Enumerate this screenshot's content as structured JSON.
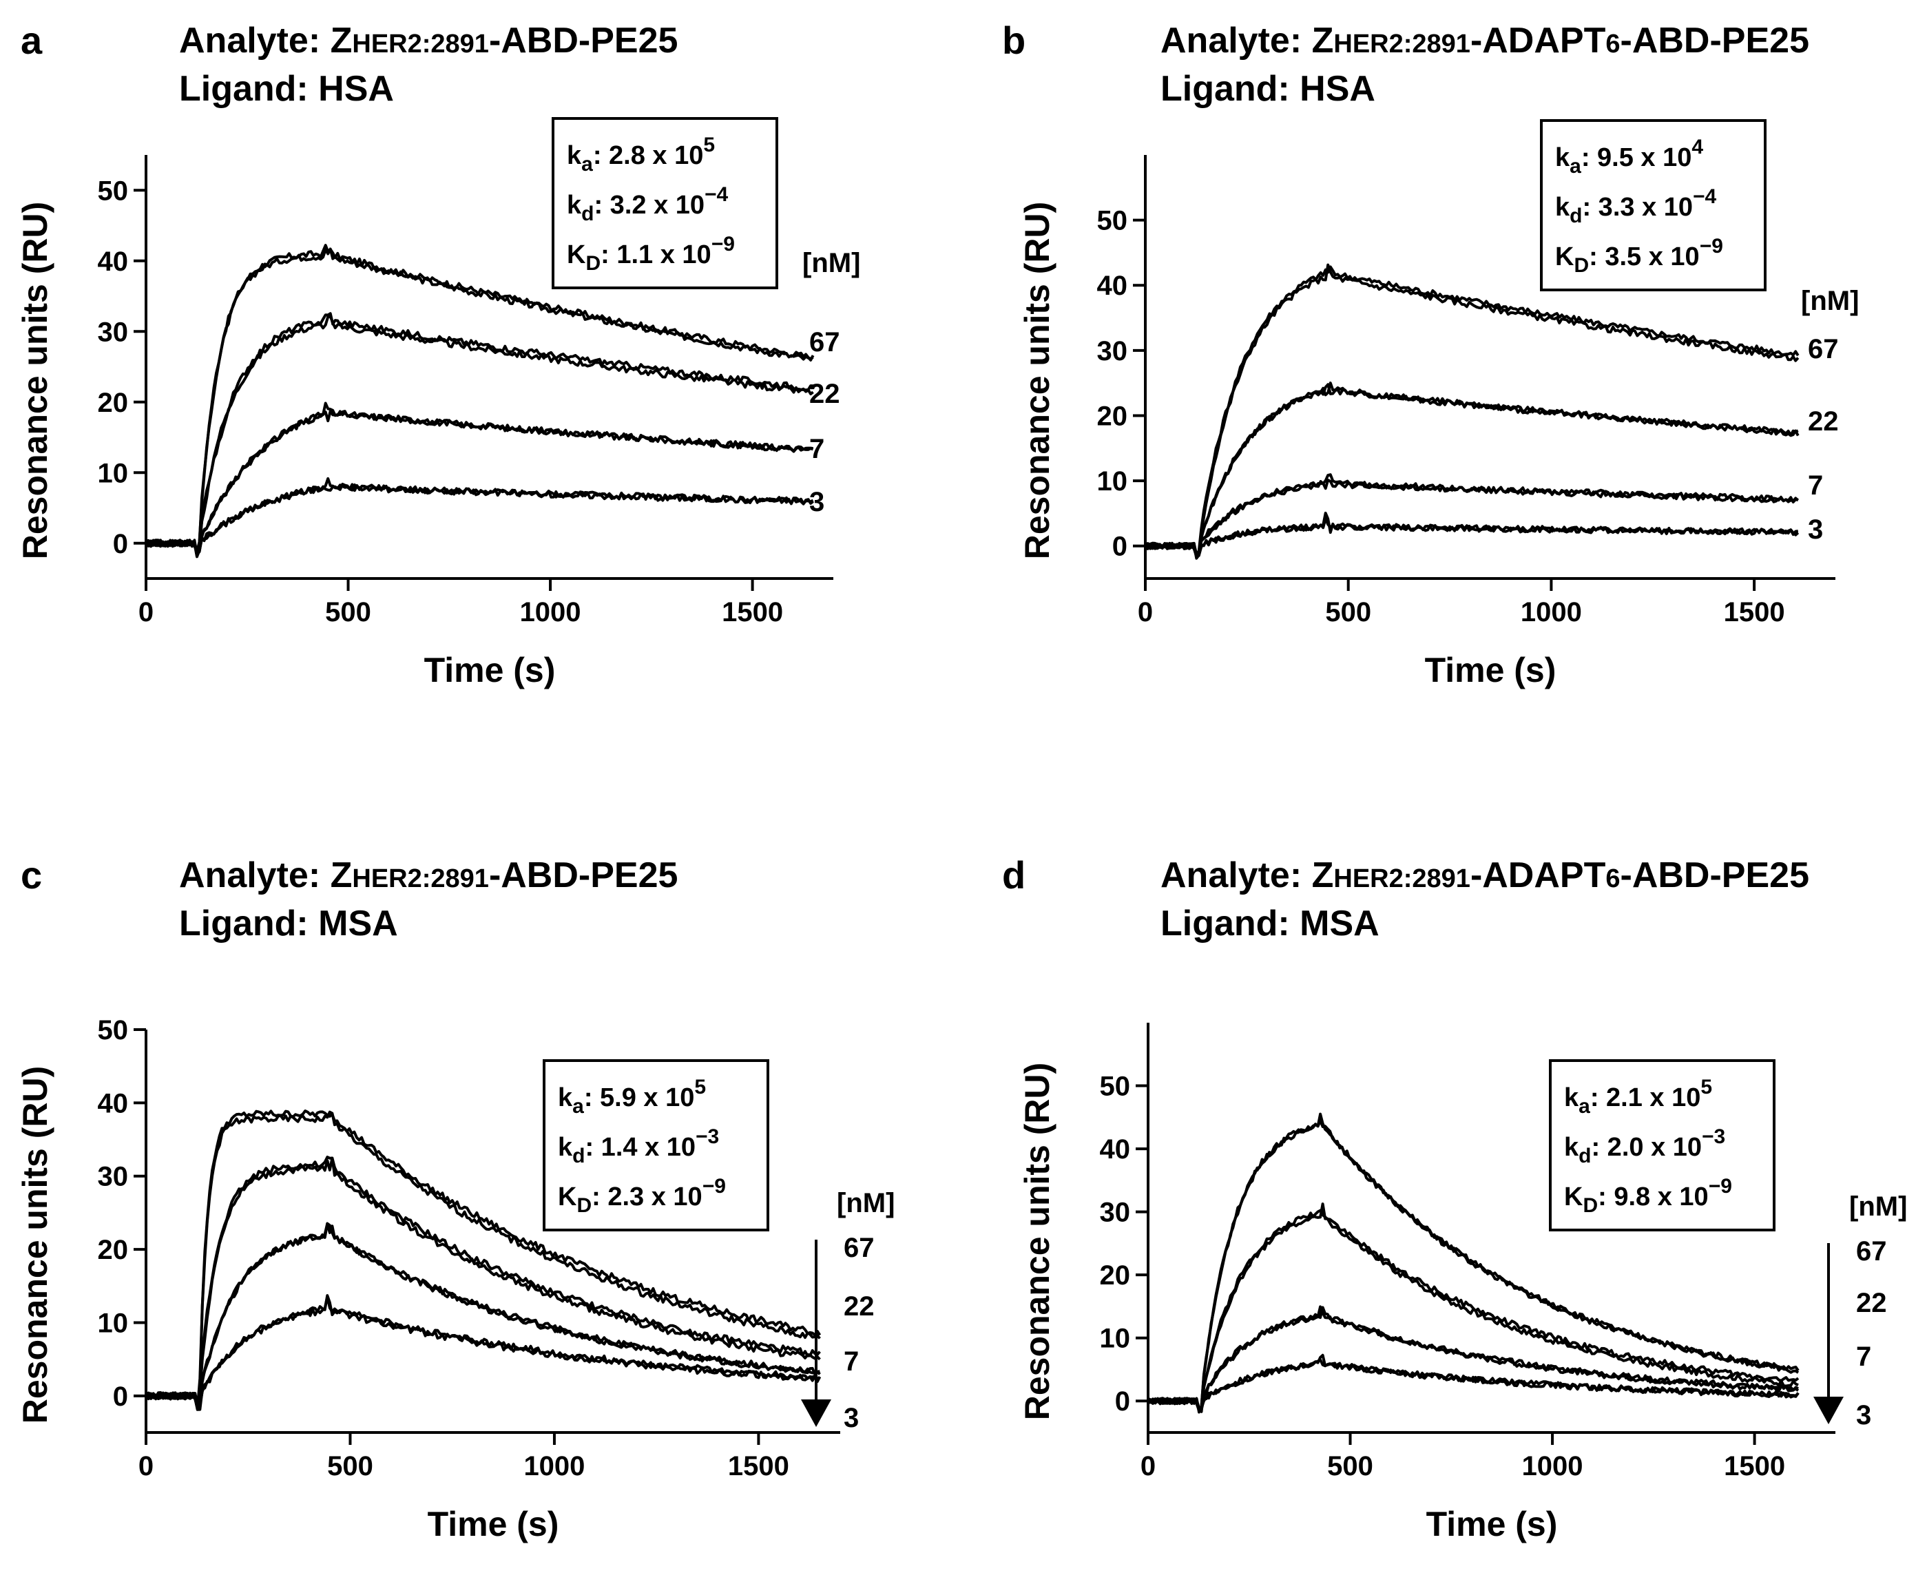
{
  "chart_data": [
    {
      "panel": "a",
      "type": "line",
      "analyte_label": "Analyte:",
      "analyte_main": "Z",
      "analyte_sub": "HER2:2891",
      "analyte_tail": "-ABD-PE25",
      "analyte_tail_sub": "",
      "analyte_tail_end": "",
      "ligand_label": "Ligand:",
      "ligand": "HSA",
      "xlabel": "Time (s)",
      "ylabel": "Resonance units (RU)",
      "xlim": [
        0,
        1700
      ],
      "ylim": [
        -5,
        55
      ],
      "xticks": [
        0,
        500,
        1000,
        1500
      ],
      "yticks": [
        0,
        10,
        20,
        30,
        40,
        50
      ],
      "kinetics": {
        "ka": {
          "label": "k",
          "sub": "a",
          "value": ": 2.8 x 10",
          "exp": "5"
        },
        "kd": {
          "label": "k",
          "sub": "d",
          "value": ": 3.2 x 10",
          "exp": "−4"
        },
        "KD": {
          "label": "K",
          "sub": "D",
          "value": ": 1.1 x 10",
          "exp": "−9"
        }
      },
      "conc_unit": "[nM]",
      "arrow": false,
      "injection": {
        "start": 130,
        "end": 450,
        "stop": 1650
      },
      "series": [
        {
          "name": "67",
          "plateau": 41,
          "rate": 0.02,
          "dissociation": 0.00037
        },
        {
          "name": "22",
          "plateau": 31,
          "rate": 0.012,
          "dissociation": 0.00031
        },
        {
          "name": "7",
          "plateau": 18.5,
          "rate": 0.006,
          "dissociation": 0.00028
        },
        {
          "name": "3",
          "plateau": 8,
          "rate": 0.005,
          "dissociation": 0.00025
        }
      ]
    },
    {
      "panel": "b",
      "type": "line",
      "analyte_label": "Analyte:",
      "analyte_main": "Z",
      "analyte_sub": "HER2:2891",
      "analyte_tail": "-ADAPT",
      "analyte_tail_sub": "6",
      "analyte_tail_end": "-ABD-PE25",
      "ligand_label": "Ligand:",
      "ligand": "HSA",
      "xlabel": "Time (s)",
      "ylabel": "Resonance units (RU)",
      "xlim": [
        0,
        1700
      ],
      "ylim": [
        -5,
        60
      ],
      "xticks": [
        0,
        500,
        1000,
        1500
      ],
      "yticks": [
        0,
        10,
        20,
        30,
        40,
        50
      ],
      "kinetics": {
        "ka": {
          "label": "k",
          "sub": "a",
          "value": ": 9.5 x 10",
          "exp": "4"
        },
        "kd": {
          "label": "k",
          "sub": "d",
          "value": ": 3.3 x 10",
          "exp": "−4"
        },
        "KD": {
          "label": "K",
          "sub": "D",
          "value": ": 3.5 x 10",
          "exp": "−9"
        }
      },
      "conc_unit": "[nM]",
      "arrow": false,
      "injection": {
        "start": 130,
        "end": 450,
        "stop": 1610
      },
      "series": [
        {
          "name": "67",
          "plateau": 42,
          "rate": 0.009,
          "dissociation": 0.00031
        },
        {
          "name": "22",
          "plateau": 24,
          "rate": 0.008,
          "dissociation": 0.00028
        },
        {
          "name": "7",
          "plateau": 9.5,
          "rate": 0.008,
          "dissociation": 0.00026
        },
        {
          "name": "3",
          "plateau": 3,
          "rate": 0.008,
          "dissociation": 0.0003
        }
      ]
    },
    {
      "panel": "c",
      "type": "line",
      "analyte_label": "Analyte:",
      "analyte_main": "Z",
      "analyte_sub": "HER2:2891",
      "analyte_tail": "-ABD-PE25",
      "analyte_tail_sub": "",
      "analyte_tail_end": "",
      "ligand_label": "Ligand:",
      "ligand": "MSA",
      "xlabel": "Time (s)",
      "ylabel": "Resonance units (RU)",
      "xlim": [
        0,
        1700
      ],
      "ylim": [
        -5,
        50
      ],
      "xticks": [
        0,
        500,
        1000,
        1500
      ],
      "yticks": [
        0,
        10,
        20,
        30,
        40,
        50
      ],
      "kinetics": {
        "ka": {
          "label": "k",
          "sub": "a",
          "value": ": 5.9 x 10",
          "exp": "5"
        },
        "kd": {
          "label": "k",
          "sub": "d",
          "value": ": 1.4 x 10",
          "exp": "−3"
        },
        "KD": {
          "label": "K",
          "sub": "D",
          "value": ": 2.3 x 10",
          "exp": "−9"
        }
      },
      "conc_unit": "[nM]",
      "arrow": true,
      "injection": {
        "start": 130,
        "end": 450,
        "stop": 1650
      },
      "series": [
        {
          "name": "67",
          "plateau": 38.5,
          "rate": 0.05,
          "dissociation": 0.00125
        },
        {
          "name": "22",
          "plateau": 31,
          "rate": 0.022,
          "dissociation": 0.0015
        },
        {
          "name": "7",
          "plateau": 22,
          "rate": 0.011,
          "dissociation": 0.0016
        },
        {
          "name": "3",
          "plateau": 12,
          "rate": 0.008,
          "dissociation": 0.0013
        }
      ]
    },
    {
      "panel": "d",
      "type": "line",
      "analyte_label": "Analyte:",
      "analyte_main": "Z",
      "analyte_sub": "HER2:2891",
      "analyte_tail": "-ADAPT",
      "analyte_tail_sub": "6",
      "analyte_tail_end": "-ABD-PE25",
      "ligand_label": "Ligand:",
      "ligand": "MSA",
      "xlabel": "Time (s)",
      "ylabel": "Resonance units (RU)",
      "xlim": [
        0,
        1700
      ],
      "ylim": [
        -5,
        60
      ],
      "xticks": [
        0,
        500,
        1000,
        1500
      ],
      "yticks": [
        0,
        10,
        20,
        30,
        40,
        50
      ],
      "kinetics": {
        "ka": {
          "label": "k",
          "sub": "a",
          "value": ": 2.1 x 10",
          "exp": "5"
        },
        "kd": {
          "label": "k",
          "sub": "d",
          "value": ": 2.0 x 10",
          "exp": "−3"
        },
        "KD": {
          "label": "K",
          "sub": "D",
          "value": ": 9.8 x 10",
          "exp": "−9"
        }
      },
      "conc_unit": "[nM]",
      "arrow": true,
      "injection": {
        "start": 130,
        "end": 430,
        "stop": 1610
      },
      "series": [
        {
          "name": "67",
          "plateau": 44,
          "rate": 0.012,
          "dissociation": 0.00185
        },
        {
          "name": "22",
          "plateau": 30,
          "rate": 0.01,
          "dissociation": 0.0019
        },
        {
          "name": "7",
          "plateau": 13.5,
          "rate": 0.008,
          "dissociation": 0.0017
        },
        {
          "name": "3",
          "plateau": 6,
          "rate": 0.006,
          "dissociation": 0.0015
        }
      ]
    }
  ]
}
